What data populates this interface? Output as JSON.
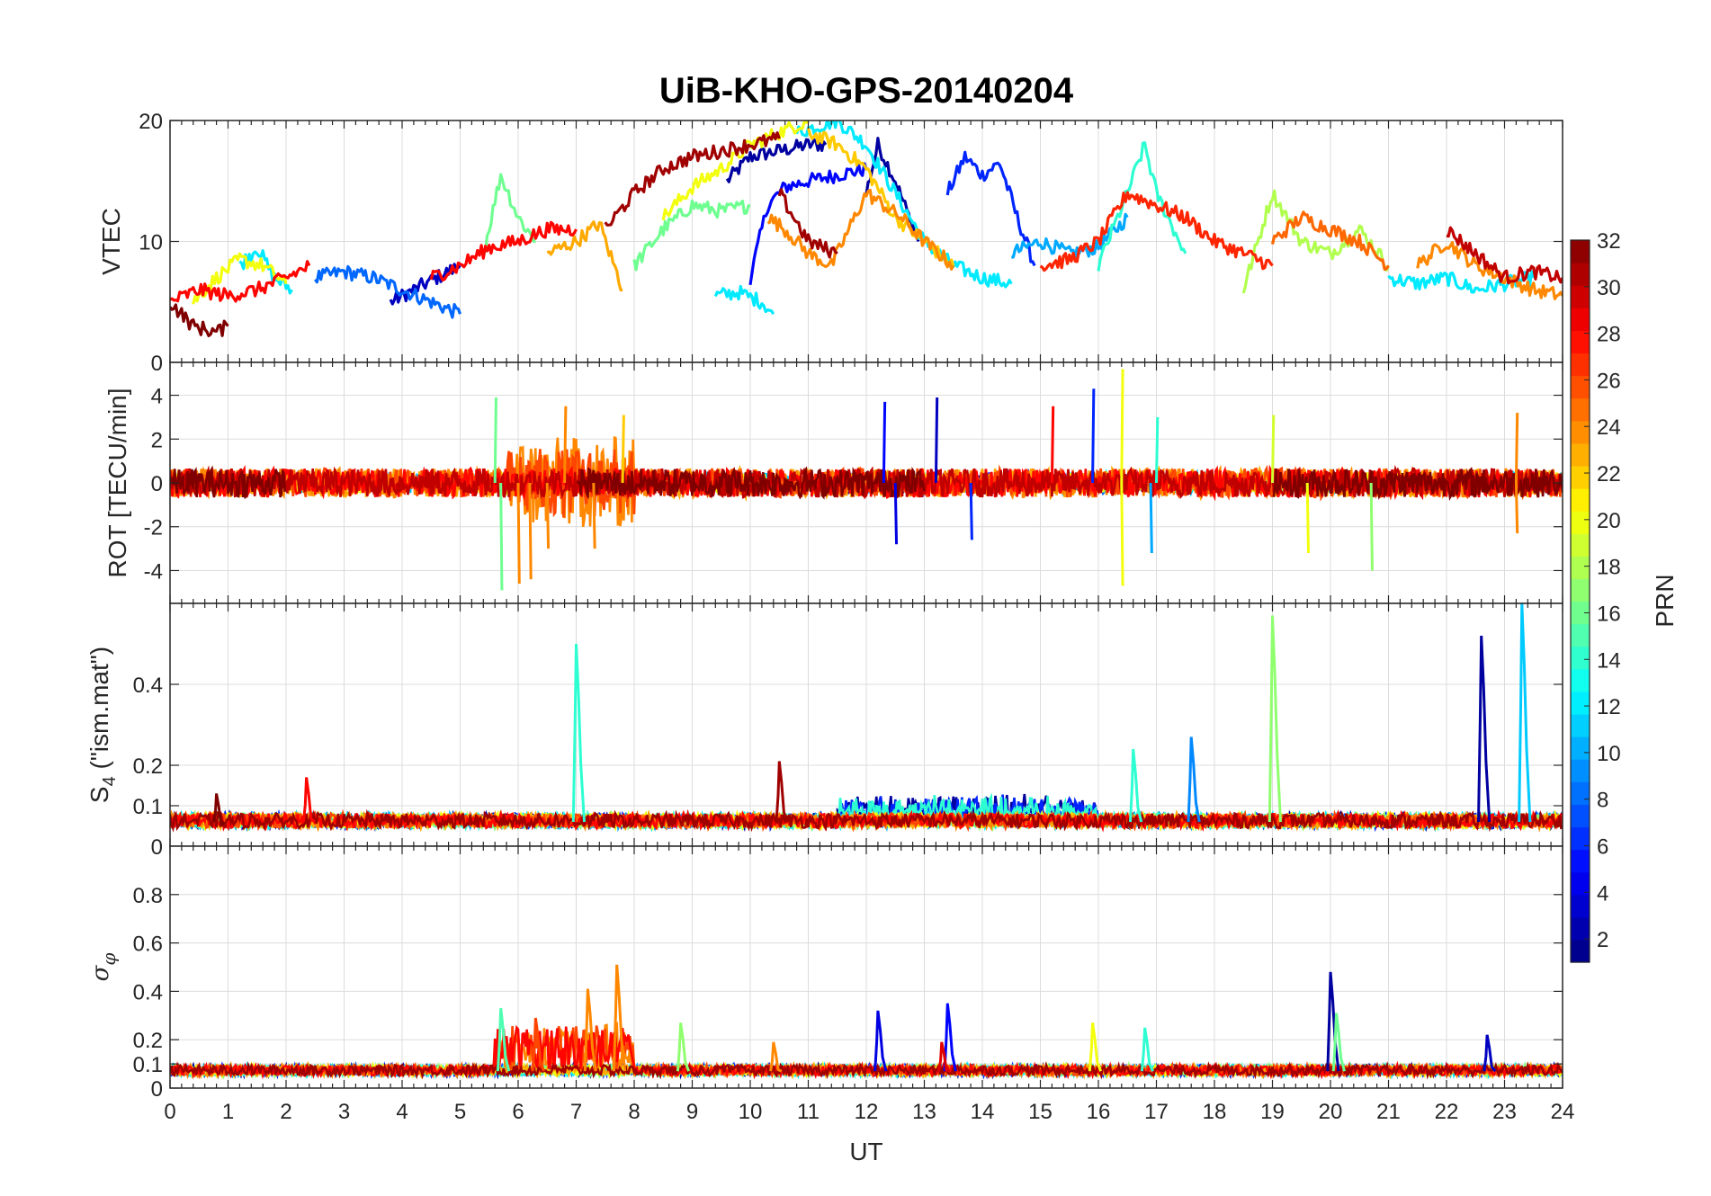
{
  "chart_data": {
    "type": "line",
    "title": "UiB-KHO-GPS-20140204",
    "xlabel": "UT",
    "xlim": [
      0,
      24
    ],
    "xticks": [
      "0",
      "1",
      "2",
      "3",
      "4",
      "5",
      "6",
      "7",
      "8",
      "9",
      "10",
      "11",
      "12",
      "13",
      "14",
      "15",
      "16",
      "17",
      "18",
      "19",
      "20",
      "21",
      "22",
      "23",
      "24"
    ],
    "grid": true,
    "panels": [
      {
        "id": "vtec",
        "ylabel": "VTEC",
        "ylim": [
          0,
          20
        ],
        "yticks": [
          0,
          10,
          20
        ],
        "yticklabels": [
          "0",
          "10",
          "20"
        ],
        "series": [
          {
            "prn": 2,
            "x": [
              9.6,
              10.0,
              10.5,
              11.0,
              11.3
            ],
            "y": [
              15,
              17,
              17.5,
              18,
              18
            ]
          },
          {
            "prn": 2,
            "x": [
              12.0,
              12.2,
              12.5,
              12.9
            ],
            "y": [
              14,
              18,
              15,
              10
            ]
          },
          {
            "prn": 3,
            "x": [
              3.8,
              4.2,
              4.6,
              5.0
            ],
            "y": [
              5,
              6,
              7,
              8
            ]
          },
          {
            "prn": 5,
            "x": [
              10.0,
              10.3,
              10.6,
              11.0,
              11.5,
              12.0
            ],
            "y": [
              7,
              13,
              14.5,
              15,
              15.5,
              16
            ]
          },
          {
            "prn": 6,
            "x": [
              13.4,
              13.7,
              14.0,
              14.3,
              14.6,
              14.9
            ],
            "y": [
              14,
              17,
              15.5,
              16.5,
              12,
              8
            ]
          },
          {
            "prn": 8,
            "x": [
              2.5,
              3.0,
              3.5,
              4.0,
              4.5,
              5.0
            ],
            "y": [
              7,
              7.5,
              7,
              6,
              5,
              4
            ]
          },
          {
            "prn": 10,
            "x": [
              14.5,
              15.0,
              15.5,
              16.0,
              16.5
            ],
            "y": [
              9,
              10,
              9,
              9.5,
              12
            ]
          },
          {
            "prn": 12,
            "x": [
              10.8,
              11.5,
              12.0,
              12.5,
              13.0,
              13.5,
              14.0,
              14.5
            ],
            "y": [
              19,
              20,
              18,
              14,
              10,
              8,
              7,
              6.5
            ]
          },
          {
            "prn": 12,
            "x": [
              9.4,
              9.8,
              10.2,
              10.4
            ],
            "y": [
              5.5,
              5.8,
              5,
              4
            ]
          },
          {
            "prn": 12,
            "x": [
              1.2,
              1.5,
              1.8,
              2.1
            ],
            "y": [
              8,
              9.5,
              7,
              6
            ]
          },
          {
            "prn": 12,
            "x": [
              21.0,
              21.5,
              22.0,
              22.5,
              23.0,
              23.5
            ],
            "y": [
              7,
              6.5,
              7,
              6,
              6.5,
              7
            ]
          },
          {
            "prn": 14,
            "x": [
              16.0,
              16.5,
              16.8,
              17.0,
              17.5
            ],
            "y": [
              8,
              14,
              18,
              14,
              9
            ]
          },
          {
            "prn": 16,
            "x": [
              8.0,
              8.5,
              9.0,
              9.5,
              10.0
            ],
            "y": [
              8,
              11,
              13,
              12.5,
              13
            ]
          },
          {
            "prn": 16,
            "x": [
              5.4,
              5.7,
              6.0,
              6.3
            ],
            "y": [
              9,
              15.5,
              12,
              10
            ]
          },
          {
            "prn": 18,
            "x": [
              18.5,
              19.0,
              19.5,
              20.0,
              20.5,
              21.0
            ],
            "y": [
              6,
              14,
              10,
              9,
              11,
              8
            ]
          },
          {
            "prn": 20,
            "x": [
              8.5,
              9.0,
              9.5,
              10.0,
              10.5,
              11.0
            ],
            "y": [
              12,
              14.5,
              16,
              18,
              19,
              20
            ]
          },
          {
            "prn": 20,
            "x": [
              0.4,
              0.8,
              1.2,
              1.6,
              2.0
            ],
            "y": [
              5,
              7,
              8.5,
              8,
              6.5
            ]
          },
          {
            "prn": 22,
            "x": [
              11.0,
              11.5,
              12.0,
              12.5,
              13.0,
              13.5
            ],
            "y": [
              19,
              18,
              16,
              12,
              10,
              8
            ]
          },
          {
            "prn": 23,
            "x": [
              6.5,
              7.0,
              7.4,
              7.8
            ],
            "y": [
              9,
              10,
              11.5,
              6
            ]
          },
          {
            "prn": 24,
            "x": [
              10.3,
              10.6,
              11.0,
              11.4,
              12.0,
              12.6,
              13.0,
              13.5
            ],
            "y": [
              12,
              11,
              9,
              8,
              14,
              12,
              10,
              8
            ]
          },
          {
            "prn": 24,
            "x": [
              21.5,
              22.0,
              22.5,
              23.0,
              23.5,
              24.0
            ],
            "y": [
              8,
              10,
              8,
              7,
              6,
              5.5
            ]
          },
          {
            "prn": 25,
            "x": [
              19.0,
              19.5,
              20.0,
              20.5,
              21.0
            ],
            "y": [
              10,
              12,
              11,
              10,
              8
            ]
          },
          {
            "prn": 27,
            "x": [
              15.0,
              15.5,
              16.0,
              16.5,
              17.0,
              17.5,
              18.0,
              18.5,
              19.0
            ],
            "y": [
              8,
              8.5,
              10,
              14,
              13,
              12,
              10,
              9,
              8
            ]
          },
          {
            "prn": 28,
            "x": [
              0.0,
              0.5,
              1.0,
              1.5,
              2.0,
              2.4
            ],
            "y": [
              5,
              6,
              5.5,
              6,
              7,
              8
            ]
          },
          {
            "prn": 28,
            "x": [
              4.5,
              5.0,
              5.5,
              6.0,
              6.5,
              7.0
            ],
            "y": [
              7,
              8,
              9.5,
              10,
              11,
              11
            ]
          },
          {
            "prn": 30,
            "x": [
              22.0,
              22.5,
              23.0,
              23.5,
              24.0
            ],
            "y": [
              11,
              9,
              7,
              7.5,
              7
            ]
          },
          {
            "prn": 31,
            "x": [
              7.5,
              8.0,
              8.5,
              9.0,
              9.5,
              10.0,
              10.5
            ],
            "y": [
              11,
              14,
              16,
              17,
              17.5,
              18,
              18.5
            ]
          },
          {
            "prn": 31,
            "x": [
              10.5,
              11.0,
              11.5
            ],
            "y": [
              14,
              10,
              9
            ]
          },
          {
            "prn": 32,
            "x": [
              0.0,
              0.4,
              0.8,
              1.0
            ],
            "y": [
              5,
              3,
              2.5,
              3
            ]
          }
        ]
      },
      {
        "id": "rot",
        "ylabel": "ROT [TECU/min]",
        "ylim": [
          -5.5,
          5.5
        ],
        "yticks": [
          -4,
          -2,
          0,
          2,
          4
        ],
        "yticklabels": [
          "-4",
          "-2",
          "0",
          "2",
          "4"
        ],
        "noise_amplitude": 0.6,
        "spikes": [
          {
            "prn": 16,
            "x": 5.6,
            "y": 3.9
          },
          {
            "prn": 16,
            "x": 5.7,
            "y": -4.9
          },
          {
            "prn": 24,
            "x": 6.0,
            "y": -4.6
          },
          {
            "prn": 24,
            "x": 6.2,
            "y": -4.4
          },
          {
            "prn": 24,
            "x": 6.5,
            "y": -3.0
          },
          {
            "prn": 24,
            "x": 6.8,
            "y": 3.5
          },
          {
            "prn": 24,
            "x": 7.3,
            "y": -3.0
          },
          {
            "prn": 22,
            "x": 7.8,
            "y": 3.1
          },
          {
            "prn": 5,
            "x": 12.3,
            "y": 3.7
          },
          {
            "prn": 4,
            "x": 12.5,
            "y": -2.8
          },
          {
            "prn": 3,
            "x": 13.2,
            "y": 3.9
          },
          {
            "prn": 6,
            "x": 13.8,
            "y": -2.6
          },
          {
            "prn": 28,
            "x": 15.2,
            "y": 3.5
          },
          {
            "prn": 6,
            "x": 15.9,
            "y": 4.3
          },
          {
            "prn": 20,
            "x": 16.4,
            "y": 5.2
          },
          {
            "prn": 20,
            "x": 16.4,
            "y": -4.7
          },
          {
            "prn": 10,
            "x": 16.9,
            "y": -3.2
          },
          {
            "prn": 14,
            "x": 17.0,
            "y": 3.0
          },
          {
            "prn": 19,
            "x": 19.0,
            "y": 3.1
          },
          {
            "prn": 20,
            "x": 19.6,
            "y": -3.2
          },
          {
            "prn": 17,
            "x": 20.7,
            "y": -4.0
          },
          {
            "prn": 24,
            "x": 23.2,
            "y": 3.2
          },
          {
            "prn": 24,
            "x": 23.2,
            "y": -2.3
          }
        ]
      },
      {
        "id": "s4",
        "ylabel": "S4 (\"ism.mat\")",
        "ylim": [
          0,
          0.6
        ],
        "yticks": [
          0,
          0.1,
          0.2,
          0.4
        ],
        "yticklabels": [
          "0",
          "0.1",
          "0.2",
          "0.4"
        ],
        "baseline": 0.06,
        "spikes": [
          {
            "prn": 14,
            "x": 7.0,
            "y": 0.5
          },
          {
            "prn": 31,
            "x": 10.5,
            "y": 0.21
          },
          {
            "prn": 28,
            "x": 2.35,
            "y": 0.17
          },
          {
            "prn": 32,
            "x": 0.8,
            "y": 0.13
          },
          {
            "prn": 14,
            "x": 16.6,
            "y": 0.24
          },
          {
            "prn": 9,
            "x": 17.6,
            "y": 0.27
          },
          {
            "prn": 17,
            "x": 19.0,
            "y": 0.57
          },
          {
            "prn": 2,
            "x": 22.6,
            "y": 0.52
          },
          {
            "prn": 11,
            "x": 23.3,
            "y": 0.6
          }
        ]
      },
      {
        "id": "sigma_phi",
        "ylabel": "σφ",
        "ylim": [
          0,
          1
        ],
        "yticks": [
          0,
          0.1,
          0.2,
          0.4,
          0.6,
          0.8
        ],
        "yticklabels": [
          "0",
          "0.1",
          "0.2",
          "0.4",
          "0.6",
          "0.8"
        ],
        "baseline": 0.07,
        "spikes": [
          {
            "prn": 15,
            "x": 5.7,
            "y": 0.33
          },
          {
            "prn": 26,
            "x": 6.3,
            "y": 0.29
          },
          {
            "prn": 24,
            "x": 7.2,
            "y": 0.41
          },
          {
            "prn": 24,
            "x": 7.7,
            "y": 0.51
          },
          {
            "prn": 17,
            "x": 8.8,
            "y": 0.27
          },
          {
            "prn": 24,
            "x": 10.4,
            "y": 0.19
          },
          {
            "prn": 4,
            "x": 12.2,
            "y": 0.32
          },
          {
            "prn": 5,
            "x": 13.4,
            "y": 0.35
          },
          {
            "prn": 29,
            "x": 13.3,
            "y": 0.19
          },
          {
            "prn": 20,
            "x": 15.9,
            "y": 0.27
          },
          {
            "prn": 14,
            "x": 16.8,
            "y": 0.25
          },
          {
            "prn": 2,
            "x": 20.0,
            "y": 0.48
          },
          {
            "prn": 16,
            "x": 20.1,
            "y": 0.31
          },
          {
            "prn": 3,
            "x": 22.7,
            "y": 0.22
          }
        ]
      }
    ],
    "colorbar": {
      "label": "PRN",
      "colormap": "jet",
      "range": [
        1,
        32
      ],
      "ticks": [
        "2",
        "4",
        "6",
        "8",
        "10",
        "12",
        "14",
        "16",
        "18",
        "20",
        "22",
        "24",
        "26",
        "28",
        "30",
        "32"
      ]
    }
  }
}
